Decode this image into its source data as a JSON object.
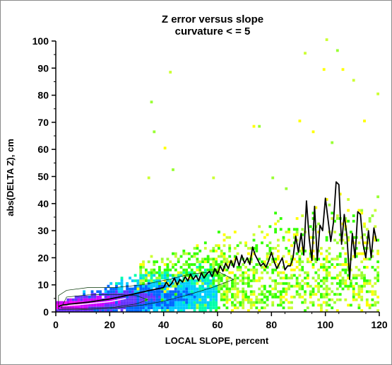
{
  "chart_data": {
    "type": "scatter",
    "title": "Z error versus slope",
    "subtitle": "curvature < = 5",
    "xlabel": "LOCAL SLOPE, percent",
    "ylabel": "abs(DELTA Z), cm",
    "xlim": [
      0,
      120
    ],
    "ylim": [
      0,
      100
    ],
    "x_ticks": [
      "0",
      "20",
      "40",
      "60",
      "80",
      "100",
      "120"
    ],
    "y_ticks": [
      "0",
      "10",
      "20",
      "30",
      "40",
      "50",
      "60",
      "70",
      "80",
      "90",
      "100"
    ],
    "grid": false,
    "density_colors": [
      "#ff00ff",
      "#cc00ff",
      "#6633ff",
      "#0066ff",
      "#00ccff",
      "#00ffaa",
      "#33ff00",
      "#99ff33",
      "#ccff33",
      "#ffff00"
    ],
    "mean_line_color": "#000000",
    "series": [
      {
        "values": [
          [
            1,
            2.0
          ],
          [
            2,
            2.4
          ],
          [
            3,
            2.6
          ],
          [
            4,
            2.7
          ],
          [
            5,
            2.9
          ],
          [
            6,
            3.0
          ],
          [
            8,
            3.2
          ],
          [
            10,
            3.4
          ],
          [
            12,
            3.6
          ],
          [
            14,
            3.9
          ],
          [
            16,
            4.2
          ],
          [
            18,
            4.5
          ],
          [
            20,
            4.8
          ],
          [
            22,
            5.2
          ],
          [
            24,
            5.6
          ],
          [
            26,
            6.0
          ],
          [
            28,
            6.4
          ],
          [
            30,
            6.9
          ],
          [
            32,
            7.3
          ],
          [
            34,
            7.8
          ],
          [
            36,
            8.2
          ],
          [
            38,
            8.6
          ],
          [
            40,
            9.0
          ],
          [
            41,
            11.0
          ],
          [
            42,
            9.5
          ],
          [
            43,
            10.5
          ],
          [
            44,
            12.5
          ],
          [
            45,
            10.0
          ],
          [
            46,
            12.0
          ],
          [
            47,
            11.0
          ],
          [
            48,
            13.0
          ],
          [
            49,
            11.5
          ],
          [
            50,
            14.0
          ],
          [
            51,
            12.0
          ],
          [
            52,
            13.5
          ],
          [
            53,
            11.5
          ],
          [
            54,
            14.5
          ],
          [
            55,
            12.5
          ],
          [
            56,
            14.0
          ],
          [
            57,
            15.0
          ],
          [
            58,
            13.0
          ],
          [
            59,
            16.0
          ],
          [
            60,
            14.0
          ],
          [
            61,
            17.0
          ],
          [
            62,
            15.0
          ],
          [
            63,
            18.0
          ],
          [
            64,
            16.0
          ],
          [
            65,
            19.0
          ],
          [
            66,
            16.5
          ],
          [
            67,
            20.5
          ],
          [
            68,
            17.0
          ],
          [
            69,
            21.0
          ],
          [
            70,
            18.0
          ],
          [
            71,
            20.0
          ],
          [
            72,
            17.5
          ],
          [
            73,
            24.0
          ],
          [
            74,
            21.0
          ],
          [
            75,
            19.0
          ],
          [
            76,
            17.0
          ],
          [
            77,
            18.0
          ],
          [
            78,
            16.5
          ],
          [
            79,
            19.0
          ],
          [
            80,
            22.0
          ],
          [
            81,
            18.5
          ],
          [
            82,
            16.0
          ],
          [
            83,
            18.0
          ],
          [
            84,
            20.0
          ],
          [
            85,
            15.5
          ],
          [
            86,
            17.0
          ],
          [
            87,
            17.0
          ],
          [
            88,
            20.0
          ],
          [
            89,
            28.0
          ],
          [
            90,
            22.0
          ],
          [
            91,
            29.0
          ],
          [
            92,
            21.0
          ],
          [
            93,
            41.0
          ],
          [
            94,
            27.0
          ],
          [
            95,
            19.0
          ],
          [
            96,
            39.0
          ],
          [
            97,
            19.0
          ],
          [
            98,
            32.0
          ],
          [
            99,
            30.0
          ],
          [
            100,
            42.0
          ],
          [
            101,
            34.0
          ],
          [
            102,
            26.0
          ],
          [
            103,
            33.0
          ],
          [
            104,
            48.0
          ],
          [
            105,
            47.0
          ],
          [
            106,
            25.0
          ],
          [
            107,
            36.0
          ],
          [
            108,
            28.0
          ],
          [
            109,
            12.0
          ],
          [
            110,
            29.0
          ],
          [
            111,
            20.0
          ],
          [
            112,
            37.0
          ],
          [
            113,
            36.0
          ],
          [
            114,
            25.0
          ],
          [
            115,
            20.0
          ],
          [
            116,
            30.0
          ],
          [
            117,
            20.0
          ],
          [
            118,
            31.0
          ],
          [
            119,
            26.0
          ]
        ]
      }
    ]
  }
}
